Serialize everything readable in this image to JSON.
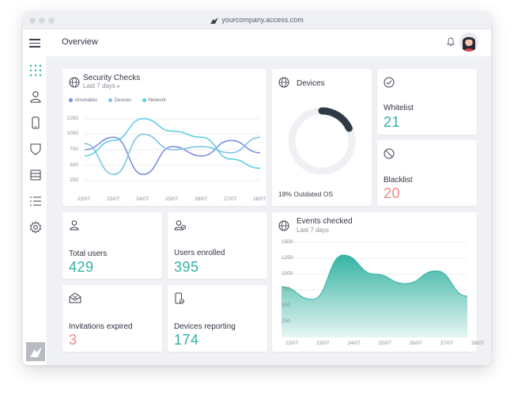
{
  "window": {
    "url": "yourcompany.access.com"
  },
  "header": {
    "title": "Overview"
  },
  "sidebar": {
    "items": [
      {
        "icon": "dashboard-grid-icon"
      },
      {
        "icon": "user-icon"
      },
      {
        "icon": "mobile-device-icon"
      },
      {
        "icon": "shield-icon"
      },
      {
        "icon": "server-icon"
      },
      {
        "icon": "list-icon"
      },
      {
        "icon": "gear-icon"
      }
    ]
  },
  "security_checks": {
    "title": "Security Checks",
    "period": "Last 7 days",
    "legend": [
      "Anomalies",
      "Devices",
      "Network"
    ]
  },
  "devices": {
    "title": "Devices",
    "caption": "18% Outdated OS",
    "outdated_fraction": 0.18
  },
  "whitelist": {
    "title": "Whitelist",
    "value": "21"
  },
  "blacklist": {
    "title": "Blacklist",
    "value": "20"
  },
  "total_users": {
    "title": "Total users",
    "value": "429"
  },
  "users_enrolled": {
    "title": "Users enrolled",
    "value": "395"
  },
  "invitations_expired": {
    "title": "Invitations expired",
    "value": "3"
  },
  "devices_reporting": {
    "title": "Devices reporting",
    "value": "174"
  },
  "events_checked": {
    "title": "Events checked",
    "period": "Last 7 days"
  },
  "colors": {
    "anomalies": "#7f8fe0",
    "devices": "#7fc4e6",
    "network": "#5fcfe4",
    "teal": "#2fb2a5",
    "red": "#f08686"
  },
  "chart_data": [
    {
      "type": "line",
      "title": "Security Checks",
      "categories": [
        "22/07",
        "23/07",
        "24/07",
        "25/07",
        "26/07",
        "27/07",
        "28/07"
      ],
      "y_ticks": [
        250,
        500,
        750,
        1000,
        1250
      ],
      "ylim": [
        150,
        1350
      ],
      "series": [
        {
          "name": "Anomalies",
          "values": [
            750,
            950,
            350,
            800,
            650,
            900,
            700
          ]
        },
        {
          "name": "Devices",
          "values": [
            850,
            350,
            1000,
            750,
            800,
            700,
            950
          ]
        },
        {
          "name": "Network",
          "values": [
            650,
            900,
            1250,
            1050,
            950,
            600,
            450
          ]
        }
      ],
      "legend": "top-left",
      "grid": true
    },
    {
      "type": "area",
      "title": "Events checked",
      "categories": [
        "22/07",
        "23/07",
        "24/07",
        "25/07",
        "26/07",
        "27/07",
        "28/07"
      ],
      "y_ticks": [
        250,
        500,
        750,
        1000,
        1250,
        1500
      ],
      "ylim": [
        0,
        1500
      ],
      "series": [
        {
          "name": "",
          "values": [
            800,
            600,
            1300,
            1000,
            850,
            1050,
            650
          ]
        }
      ],
      "grid": true
    }
  ]
}
